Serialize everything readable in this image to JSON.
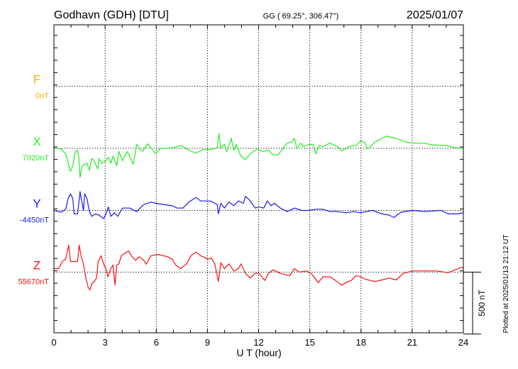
{
  "header": {
    "station": "Godhavn (GDH)  [DTU]",
    "coords": "GG ( 69.25°, 306.47°)",
    "date": "2025/01/07"
  },
  "footer": {
    "plotted": "Plotted at 2025/01/13 21:12 UT"
  },
  "chart_data": {
    "type": "line",
    "title": "Godhavn (GDH)  [DTU]",
    "xlabel": "U T (hour)",
    "ylabel": "",
    "xlim": [
      0,
      24
    ],
    "xticks": [
      "0",
      "3",
      "6",
      "9",
      "12",
      "15",
      "18",
      "21",
      "24"
    ],
    "grid": true,
    "scale_bar": {
      "value": 500,
      "label": "500 nT"
    },
    "y_minor_tick_nT": 100,
    "series": [
      {
        "name": "F",
        "baseline_label": "0nT",
        "color": "#ffae00",
        "points": []
      },
      {
        "name": "X",
        "baseline_label": "7920nT",
        "color": "#22ee22",
        "points": [
          [
            0,
            4
          ],
          [
            0.42,
            -6
          ],
          [
            0.69,
            -44
          ],
          [
            0.83,
            -120
          ],
          [
            0.97,
            -186
          ],
          [
            1.11,
            -139
          ],
          [
            1.25,
            -25
          ],
          [
            1.39,
            -15
          ],
          [
            1.46,
            -82
          ],
          [
            1.53,
            -234
          ],
          [
            1.66,
            -139
          ],
          [
            1.8,
            -129
          ],
          [
            1.94,
            -120
          ],
          [
            2.08,
            -177
          ],
          [
            2.22,
            -82
          ],
          [
            2.36,
            -101
          ],
          [
            2.57,
            -167
          ],
          [
            2.64,
            -82
          ],
          [
            2.77,
            -120
          ],
          [
            2.98,
            -110
          ],
          [
            3.19,
            -72
          ],
          [
            3.33,
            -120
          ],
          [
            3.47,
            -63
          ],
          [
            3.68,
            -139
          ],
          [
            3.81,
            -25
          ],
          [
            4.02,
            -101
          ],
          [
            4.3,
            -25
          ],
          [
            4.44,
            -63
          ],
          [
            4.65,
            -129
          ],
          [
            4.85,
            32
          ],
          [
            5.06,
            -15
          ],
          [
            5.2,
            -25
          ],
          [
            5.48,
            36
          ],
          [
            5.69,
            4
          ],
          [
            5.96,
            -44
          ],
          [
            6.24,
            -2
          ],
          [
            6.94,
            4
          ],
          [
            7.49,
            23
          ],
          [
            7.77,
            -6
          ],
          [
            8.32,
            -40
          ],
          [
            8.74,
            -10
          ],
          [
            9.15,
            -10
          ],
          [
            9.57,
            4
          ],
          [
            9.67,
            118
          ],
          [
            9.78,
            4
          ],
          [
            9.99,
            32
          ],
          [
            10.13,
            -25
          ],
          [
            10.26,
            23
          ],
          [
            10.4,
            80
          ],
          [
            10.54,
            -15
          ],
          [
            10.68,
            32
          ],
          [
            10.96,
            -63
          ],
          [
            11.23,
            -91
          ],
          [
            11.51,
            -44
          ],
          [
            11.79,
            -15
          ],
          [
            11.93,
            -6
          ],
          [
            12.02,
            -15
          ],
          [
            12.3,
            -25
          ],
          [
            12.57,
            -15
          ],
          [
            12.85,
            -53
          ],
          [
            13.13,
            -53
          ],
          [
            13.41,
            -6
          ],
          [
            13.68,
            42
          ],
          [
            13.96,
            51
          ],
          [
            14.1,
            80
          ],
          [
            14.24,
            -6
          ],
          [
            14.45,
            42
          ],
          [
            14.66,
            13
          ],
          [
            14.93,
            32
          ],
          [
            15.21,
            32
          ],
          [
            15.35,
            -44
          ],
          [
            15.56,
            23
          ],
          [
            15.76,
            13
          ],
          [
            16.18,
            42
          ],
          [
            16.6,
            13
          ],
          [
            16.87,
            -21
          ],
          [
            17.29,
            13
          ],
          [
            17.71,
            23
          ],
          [
            17.98,
            61
          ],
          [
            18.19,
            51
          ],
          [
            18.4,
            -6
          ],
          [
            18.82,
            51
          ],
          [
            19.23,
            80
          ],
          [
            19.51,
            99
          ],
          [
            19.79,
            89
          ],
          [
            20.06,
            80
          ],
          [
            20.62,
            51
          ],
          [
            21.04,
            42
          ],
          [
            21.73,
            42
          ],
          [
            22.15,
            28
          ],
          [
            22.98,
            23
          ],
          [
            23.53,
            4
          ],
          [
            24,
            0
          ]
        ]
      },
      {
        "name": "Y",
        "baseline_label": "-4450nT",
        "color": "#1a1aee",
        "points": [
          [
            0,
            0
          ],
          [
            0.42,
            -15
          ],
          [
            0.69,
            10
          ],
          [
            0.83,
            95
          ],
          [
            0.97,
            133
          ],
          [
            1.11,
            95
          ],
          [
            1.18,
            -28
          ],
          [
            1.39,
            -28
          ],
          [
            1.53,
            152
          ],
          [
            1.6,
            95
          ],
          [
            1.73,
            0
          ],
          [
            1.8,
            133
          ],
          [
            1.94,
            95
          ],
          [
            2.08,
            -10
          ],
          [
            2.22,
            -48
          ],
          [
            2.43,
            -28
          ],
          [
            2.64,
            -38
          ],
          [
            2.91,
            -67
          ],
          [
            3.05,
            -28
          ],
          [
            3.19,
            28
          ],
          [
            3.33,
            -48
          ],
          [
            3.54,
            -19
          ],
          [
            3.74,
            -48
          ],
          [
            4.02,
            19
          ],
          [
            4.44,
            19
          ],
          [
            4.85,
            -10
          ],
          [
            5.27,
            48
          ],
          [
            5.69,
            67
          ],
          [
            5.96,
            57
          ],
          [
            6.38,
            48
          ],
          [
            6.94,
            38
          ],
          [
            7.21,
            19
          ],
          [
            7.56,
            19
          ],
          [
            7.91,
            67
          ],
          [
            8.32,
            105
          ],
          [
            8.6,
            76
          ],
          [
            9.15,
            76
          ],
          [
            9.57,
            48
          ],
          [
            9.64,
            -28
          ],
          [
            9.78,
            57
          ],
          [
            9.99,
            19
          ],
          [
            10.26,
            67
          ],
          [
            10.54,
            38
          ],
          [
            10.82,
            76
          ],
          [
            11.1,
            57
          ],
          [
            11.23,
            114
          ],
          [
            11.51,
            76
          ],
          [
            11.79,
            19
          ],
          [
            12.02,
            28
          ],
          [
            12.3,
            19
          ],
          [
            12.51,
            76
          ],
          [
            12.72,
            38
          ],
          [
            12.92,
            57
          ],
          [
            13.27,
            19
          ],
          [
            13.68,
            -10
          ],
          [
            14.1,
            19
          ],
          [
            14.52,
            0
          ],
          [
            14.93,
            0
          ],
          [
            15.35,
            10
          ],
          [
            15.76,
            10
          ],
          [
            16.18,
            -10
          ],
          [
            16.6,
            -10
          ],
          [
            17.15,
            -19
          ],
          [
            17.57,
            -10
          ],
          [
            17.98,
            -19
          ],
          [
            18.68,
            0
          ],
          [
            19.23,
            -28
          ],
          [
            19.65,
            -38
          ],
          [
            19.93,
            -57
          ],
          [
            20.34,
            -15
          ],
          [
            21.04,
            0
          ],
          [
            21.73,
            -10
          ],
          [
            22.7,
            0
          ],
          [
            23.12,
            -28
          ],
          [
            23.67,
            -28
          ],
          [
            24,
            -19
          ]
        ]
      },
      {
        "name": "Z",
        "baseline_label": "55670nT",
        "color": "#ff1010",
        "points": [
          [
            0,
            28
          ],
          [
            0.28,
            28
          ],
          [
            0.49,
            86
          ],
          [
            0.69,
            105
          ],
          [
            0.86,
            219
          ],
          [
            0.97,
            86
          ],
          [
            1.25,
            86
          ],
          [
            1.39,
            86
          ],
          [
            1.48,
            219
          ],
          [
            1.6,
            124
          ],
          [
            1.73,
            67
          ],
          [
            1.87,
            -48
          ],
          [
            2.01,
            -124
          ],
          [
            2.11,
            -143
          ],
          [
            2.22,
            -95
          ],
          [
            2.36,
            -76
          ],
          [
            2.5,
            -48
          ],
          [
            2.59,
            86
          ],
          [
            2.77,
            133
          ],
          [
            2.91,
            67
          ],
          [
            3.05,
            28
          ],
          [
            3.16,
            -38
          ],
          [
            3.33,
            28
          ],
          [
            3.47,
            57
          ],
          [
            3.58,
            -105
          ],
          [
            3.68,
            57
          ],
          [
            3.81,
            67
          ],
          [
            3.95,
            133
          ],
          [
            4.16,
            152
          ],
          [
            4.37,
            171
          ],
          [
            4.58,
            124
          ],
          [
            4.79,
            95
          ],
          [
            4.99,
            124
          ],
          [
            5.27,
            95
          ],
          [
            5.41,
            63
          ],
          [
            5.69,
            133
          ],
          [
            6.1,
            143
          ],
          [
            6.66,
            124
          ],
          [
            6.94,
            105
          ],
          [
            7.14,
            57
          ],
          [
            7.42,
            28
          ],
          [
            7.77,
            67
          ],
          [
            8.04,
            133
          ],
          [
            8.32,
            162
          ],
          [
            8.6,
            133
          ],
          [
            9.02,
            105
          ],
          [
            9.22,
            114
          ],
          [
            9.43,
            67
          ],
          [
            9.64,
            -76
          ],
          [
            9.78,
            76
          ],
          [
            9.99,
            28
          ],
          [
            10.26,
            67
          ],
          [
            10.54,
            10
          ],
          [
            10.82,
            28
          ],
          [
            10.96,
            67
          ],
          [
            11.23,
            -10
          ],
          [
            11.51,
            -48
          ],
          [
            11.79,
            -10
          ],
          [
            12.02,
            -10
          ],
          [
            12.37,
            -67
          ],
          [
            12.57,
            -10
          ],
          [
            12.85,
            19
          ],
          [
            13.27,
            -10
          ],
          [
            13.82,
            -28
          ],
          [
            14.1,
            28
          ],
          [
            14.38,
            0
          ],
          [
            14.79,
            10
          ],
          [
            15.07,
            -10
          ],
          [
            15.35,
            -57
          ],
          [
            15.49,
            -86
          ],
          [
            15.76,
            -38
          ],
          [
            16.18,
            -38
          ],
          [
            16.6,
            -76
          ],
          [
            16.87,
            -105
          ],
          [
            17.22,
            -76
          ],
          [
            17.43,
            -67
          ],
          [
            17.71,
            -28
          ],
          [
            17.98,
            -38
          ],
          [
            18.26,
            -57
          ],
          [
            18.82,
            -76
          ],
          [
            19.23,
            -63
          ],
          [
            19.65,
            -48
          ],
          [
            20.06,
            -63
          ],
          [
            20.48,
            -10
          ],
          [
            21.04,
            10
          ],
          [
            21.73,
            10
          ],
          [
            22.42,
            10
          ],
          [
            23.12,
            -4
          ],
          [
            23.53,
            19
          ],
          [
            23.88,
            38
          ],
          [
            24,
            32
          ]
        ]
      }
    ]
  }
}
